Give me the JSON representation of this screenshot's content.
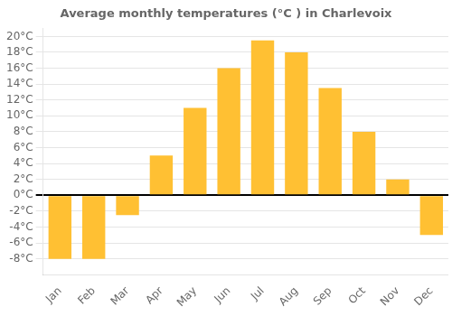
{
  "chart_data": {
    "type": "bar",
    "title": "Average monthly temperatures (°C ) in Charlevoix",
    "categories": [
      "Jan",
      "Feb",
      "Mar",
      "Apr",
      "May",
      "Jun",
      "Jul",
      "Aug",
      "Sep",
      "Oct",
      "Nov",
      "Dec"
    ],
    "values": [
      -8,
      -8,
      -2.5,
      5,
      11,
      16,
      19.5,
      18,
      13.5,
      8,
      2,
      -5
    ],
    "color": "#FFC033",
    "ylim": [
      -10,
      21
    ],
    "yticks": [
      {
        "value": -8,
        "label": "-8°C"
      },
      {
        "value": -6,
        "label": "-6°C"
      },
      {
        "value": -4,
        "label": "-4°C"
      },
      {
        "value": -2,
        "label": "-2°C"
      },
      {
        "value": 0,
        "label": "0°C"
      },
      {
        "value": 2,
        "label": "2°C"
      },
      {
        "value": 4,
        "label": "4°C"
      },
      {
        "value": 6,
        "label": "6°C"
      },
      {
        "value": 8,
        "label": "8°C"
      },
      {
        "value": 10,
        "label": "10°C"
      },
      {
        "value": 12,
        "label": "12°C"
      },
      {
        "value": 14,
        "label": "14°C"
      },
      {
        "value": 16,
        "label": "16°C"
      },
      {
        "value": 18,
        "label": "18°C"
      },
      {
        "value": 20,
        "label": "20°C"
      }
    ],
    "grid": true
  }
}
